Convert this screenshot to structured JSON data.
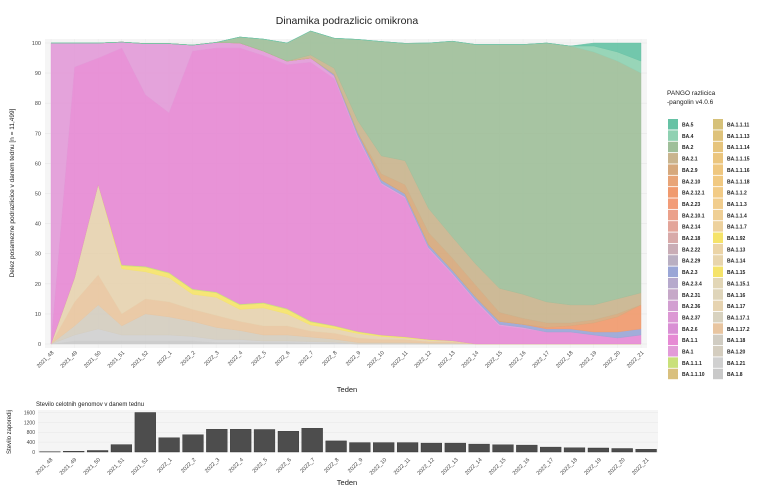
{
  "chart_data": [
    {
      "type": "area",
      "stacked": true,
      "title": "Dinamika podrazlicic omikrona",
      "xlabel": "Teden",
      "ylabel": "Delez posamezne podrazlicice v danem tednu [n = 11,499]",
      "ylim": [
        0,
        100
      ],
      "yticks": [
        0,
        10,
        20,
        30,
        40,
        50,
        60,
        70,
        80,
        90,
        100
      ],
      "categories": [
        "2021_48",
        "2021_49",
        "2021_50",
        "2021_51",
        "2021_52",
        "2022_1",
        "2022_2",
        "2022_3",
        "2022_4",
        "2022_5",
        "2022_6",
        "2022_7",
        "2022_8",
        "2022_9",
        "2022_10",
        "2022_11",
        "2022_12",
        "2022_13",
        "2022_14",
        "2022_15",
        "2022_16",
        "2022_17",
        "2022_18",
        "2022_19",
        "2022_20",
        "2022_21"
      ],
      "grid": true,
      "legend": {
        "title": "PANGO razlicica\n-pangolin v4.0.6",
        "placement": "right",
        "columns": [
          [
            "BA.5",
            "BA.4",
            "BA.2",
            "BA.2.1",
            "BA.2.9",
            "BA.2.10",
            "BA.2.12.1",
            "BA.2.23",
            "BA.2.10.1",
            "BA.2.14",
            "BA.2.18",
            "BA.2.22",
            "BA.2.29",
            "BA.2.3",
            "BA.2.3.4",
            "BA.2.31",
            "BA.2.36",
            "BA.2.37",
            "BA.2.6",
            "BA.1.1",
            "BA.1",
            "BA.1.1.1",
            "BA.1.1.10"
          ],
          [
            "BA.1.1.11",
            "BA.1.1.13",
            "BA.1.1.14",
            "BA.1.1.15",
            "BA.1.1.16",
            "BA.1.1.18",
            "BA.1.1.2",
            "BA.1.1.3",
            "BA.1.1.4",
            "BA.1.1.7",
            "BA.1.92",
            "BA.1.13",
            "BA.1.14",
            "BA.1.15",
            "BA.1.15.1",
            "BA.1.16",
            "BA.1.17",
            "BA.1.17.1",
            "BA.1.17.2",
            "BA.1.18",
            "BA.1.20",
            "BA.1.21",
            "BA.1.8"
          ]
        ]
      },
      "series": [
        {
          "name": "BA.1.8",
          "color": "#c9c9c9",
          "values": [
            0,
            1,
            1,
            1,
            1,
            1,
            1,
            0.5,
            0.5,
            0.5,
            0.5,
            0.3,
            0.3,
            0,
            0,
            0,
            0,
            0,
            0,
            0,
            0,
            0,
            0,
            0,
            0,
            0
          ]
        },
        {
          "name": "BA.1.21",
          "color": "#d0d0d0",
          "values": [
            0,
            2,
            4,
            2,
            2,
            2,
            1.5,
            1,
            1,
            0.5,
            0.5,
            0.5,
            0.3,
            0,
            0,
            0,
            0,
            0,
            0,
            0,
            0,
            0,
            0,
            0,
            0,
            0
          ]
        },
        {
          "name": "BA.1.20",
          "color": "#d4cdbf",
          "values": [
            0,
            3,
            8,
            3,
            7,
            6,
            5,
            4,
            3,
            2,
            2,
            1.5,
            1,
            0.5,
            0.5,
            0.5,
            0.3,
            0.3,
            0,
            0,
            0,
            0,
            0,
            0,
            0,
            0
          ]
        },
        {
          "name": "BA.1.17.2",
          "color": "#e8c5a0",
          "values": [
            0,
            8,
            10,
            4,
            5,
            5,
            4,
            4,
            3,
            3,
            3,
            2,
            2,
            1.5,
            1,
            1,
            0.5,
            0.5,
            0,
            0,
            0,
            0,
            0,
            0,
            0,
            0
          ]
        },
        {
          "name": "BA.1.17",
          "color": "#e6d3b0",
          "values": [
            0,
            8,
            30,
            15,
            9,
            8,
            5,
            6,
            4,
            6,
            4,
            2,
            1.5,
            1.5,
            1,
            0.5,
            0.5,
            0.2,
            0,
            0,
            0,
            0,
            0,
            0,
            0,
            0
          ]
        },
        {
          "name": "BA.1.15",
          "color": "#f5e36a",
          "values": [
            0,
            0,
            0,
            1,
            1.5,
            1.5,
            1.5,
            1.5,
            1.5,
            1.5,
            1.5,
            1,
            0.8,
            0.5,
            0.4,
            0.3,
            0.2,
            0.1,
            0,
            0,
            0,
            0,
            0,
            0,
            0,
            0
          ]
        },
        {
          "name": "BA.1.1.1",
          "color": "#c9e07a",
          "values": [
            0,
            0,
            0,
            0.3,
            0.3,
            0.3,
            0.3,
            0.3,
            0.3,
            0.3,
            0.3,
            0.3,
            0.2,
            0.2,
            0.1,
            0.1,
            0,
            0,
            0,
            0,
            0,
            0,
            0,
            0,
            0,
            0
          ]
        },
        {
          "name": "BA.1.1",
          "color": "#e68ad4",
          "values": [
            0,
            70,
            42,
            72,
            57,
            53,
            79,
            81,
            85,
            82,
            81,
            86,
            82,
            64,
            50,
            46,
            30,
            22,
            14,
            6,
            5,
            4,
            4,
            3,
            2,
            3
          ]
        },
        {
          "name": "BA.1",
          "color": "#e29bd8",
          "values": [
            100,
            8,
            5,
            2,
            17,
            23,
            2,
            1.9,
            1.7,
            1.5,
            1.2,
            1.4,
            1,
            1,
            0.5,
            0.5,
            0.5,
            0.5,
            0.5,
            0.5,
            0.5,
            0,
            0,
            0,
            0,
            0
          ]
        },
        {
          "name": "BA.2.3",
          "color": "#9aa6d6",
          "values": [
            0,
            0,
            0,
            0,
            0,
            0,
            0,
            0,
            0,
            0,
            0,
            0,
            0.5,
            1,
            1,
            1,
            1,
            1,
            1,
            1,
            1,
            1,
            1,
            1,
            2,
            2
          ]
        },
        {
          "name": "BA.2.12.1",
          "color": "#f09a6e",
          "values": [
            0,
            0,
            0,
            0,
            0,
            0,
            0,
            0,
            0,
            0,
            0,
            0,
            0,
            0,
            0,
            0,
            0,
            0,
            0,
            0,
            0,
            0.5,
            1,
            3,
            5,
            8
          ]
        },
        {
          "name": "BA.2.9",
          "color": "#d6a87c",
          "values": [
            0,
            0,
            0,
            0,
            0,
            0,
            0,
            0,
            0,
            0,
            0,
            0,
            0,
            0,
            2,
            3,
            4,
            4,
            4,
            3,
            2,
            1.5,
            1,
            1,
            1,
            0
          ]
        },
        {
          "name": "BA.2.1",
          "color": "#c9b48e",
          "values": [
            0,
            0,
            0,
            0,
            0,
            0,
            0,
            0,
            0,
            0,
            0,
            1,
            2,
            4,
            6,
            8,
            8,
            7,
            7,
            8,
            8,
            7,
            6,
            5,
            5,
            4
          ]
        },
        {
          "name": "BA.2",
          "color": "#9fbf9a",
          "values": [
            0,
            0,
            0,
            0,
            0,
            0,
            0,
            0,
            2,
            4,
            6,
            8,
            10,
            27,
            38,
            39,
            55,
            65,
            73,
            81,
            83,
            86,
            86,
            84,
            79,
            73
          ]
        },
        {
          "name": "BA.4",
          "color": "#8fd1b2",
          "values": [
            0,
            0,
            0,
            0,
            0,
            0,
            0,
            0,
            0,
            0,
            0,
            0,
            0,
            0,
            0,
            0,
            0,
            0,
            0,
            0,
            0,
            0,
            0,
            2,
            3,
            4
          ]
        },
        {
          "name": "BA.5",
          "color": "#66c2a5",
          "values": [
            0,
            0,
            0,
            0,
            0,
            0,
            0,
            0,
            0,
            0,
            0,
            0,
            0,
            0,
            0,
            0,
            0,
            0,
            0,
            0,
            0,
            0,
            0,
            1,
            3,
            6
          ]
        }
      ]
    },
    {
      "type": "bar",
      "title": "Stevilo celotnih genomov v danem tednu",
      "xlabel": "Teden",
      "ylabel": "Stevilo zaporedij",
      "ylim": [
        0,
        1700
      ],
      "yticks": [
        0,
        400,
        800,
        1200,
        1600
      ],
      "categories": [
        "2021_48",
        "2021_49",
        "2021_50",
        "2021_51",
        "2021_52",
        "2022_1",
        "2022_2",
        "2022_3",
        "2022_4",
        "2022_5",
        "2022_6",
        "2022_7",
        "2022_8",
        "2022_9",
        "2022_10",
        "2022_11",
        "2022_12",
        "2022_13",
        "2022_14",
        "2022_15",
        "2022_16",
        "2022_17",
        "2022_18",
        "2022_19",
        "2022_20",
        "2022_21"
      ],
      "values": [
        10,
        30,
        60,
        300,
        1600,
        580,
        700,
        920,
        920,
        910,
        840,
        960,
        450,
        380,
        380,
        380,
        360,
        360,
        320,
        290,
        280,
        200,
        170,
        160,
        140,
        110
      ],
      "color": "#4d4d4d"
    }
  ]
}
